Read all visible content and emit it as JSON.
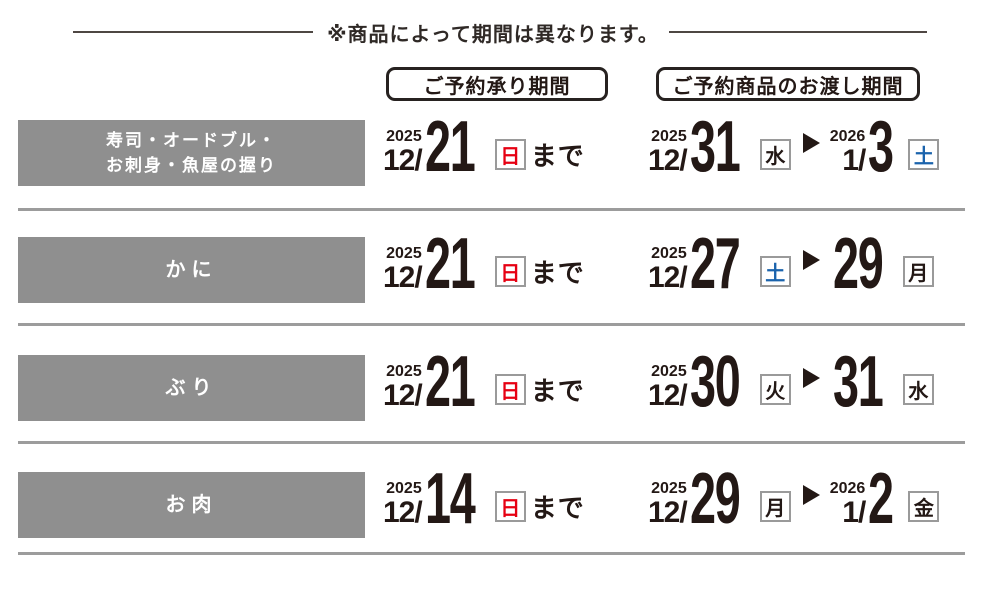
{
  "note": "※商品によって期間は異なります。",
  "headers": {
    "reservation": "ご予約承り期間",
    "handover": "ご予約商品のお渡し期間"
  },
  "colors": {
    "bar_gray": "#8f8f8f",
    "text_dark": "#231815",
    "sunday_red": "#e60012",
    "saturday_blue": "#1b63ac",
    "separator_gray": "#9c9c9c"
  },
  "rows": [
    {
      "category_lines": [
        "寿司・オードブル・",
        "お刺身・魚屋の握り"
      ],
      "reservation": {
        "year": "2025",
        "month": "12/",
        "day": "21",
        "weekday": "日",
        "weekday_color": "red",
        "suffix": "まで"
      },
      "handover": {
        "start": {
          "year": "2025",
          "month": "12/",
          "day": "31",
          "weekday": "水",
          "weekday_color": "black"
        },
        "end": {
          "year": "2026",
          "month": "1/",
          "day": "3",
          "weekday": "土",
          "weekday_color": "blue"
        }
      }
    },
    {
      "category_lines": [
        "かに"
      ],
      "reservation": {
        "year": "2025",
        "month": "12/",
        "day": "21",
        "weekday": "日",
        "weekday_color": "red",
        "suffix": "まで"
      },
      "handover": {
        "start": {
          "year": "2025",
          "month": "12/",
          "day": "27",
          "weekday": "土",
          "weekday_color": "blue"
        },
        "end": {
          "year": "",
          "month": "",
          "day": "29",
          "weekday": "月",
          "weekday_color": "black"
        }
      }
    },
    {
      "category_lines": [
        "ぶり"
      ],
      "reservation": {
        "year": "2025",
        "month": "12/",
        "day": "21",
        "weekday": "日",
        "weekday_color": "red",
        "suffix": "まで"
      },
      "handover": {
        "start": {
          "year": "2025",
          "month": "12/",
          "day": "30",
          "weekday": "火",
          "weekday_color": "black"
        },
        "end": {
          "year": "",
          "month": "",
          "day": "31",
          "weekday": "水",
          "weekday_color": "black"
        }
      }
    },
    {
      "category_lines": [
        "お肉"
      ],
      "reservation": {
        "year": "2025",
        "month": "12/",
        "day": "14",
        "weekday": "日",
        "weekday_color": "red",
        "suffix": "まで"
      },
      "handover": {
        "start": {
          "year": "2025",
          "month": "12/",
          "day": "29",
          "weekday": "月",
          "weekday_color": "black"
        },
        "end": {
          "year": "2026",
          "month": "1/",
          "day": "2",
          "weekday": "金",
          "weekday_color": "black"
        }
      }
    }
  ]
}
